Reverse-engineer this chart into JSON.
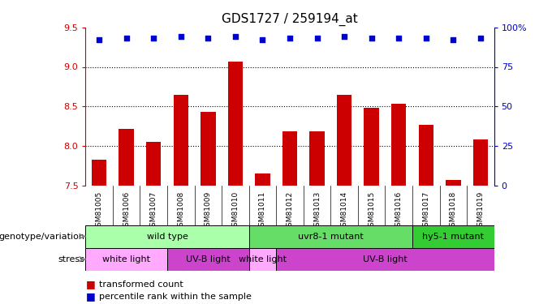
{
  "title": "GDS1727 / 259194_at",
  "samples": [
    "GSM81005",
    "GSM81006",
    "GSM81007",
    "GSM81008",
    "GSM81009",
    "GSM81010",
    "GSM81011",
    "GSM81012",
    "GSM81013",
    "GSM81014",
    "GSM81015",
    "GSM81016",
    "GSM81017",
    "GSM81018",
    "GSM81019"
  ],
  "bar_values": [
    7.83,
    8.22,
    8.05,
    8.65,
    8.43,
    9.07,
    7.65,
    8.18,
    8.18,
    8.65,
    8.48,
    8.53,
    8.27,
    7.57,
    8.08
  ],
  "percentile_values": [
    92,
    93,
    93,
    94,
    93,
    94,
    92,
    93,
    93,
    94,
    93,
    93,
    93,
    92,
    93
  ],
  "bar_color": "#cc0000",
  "percentile_color": "#0000cc",
  "ylim_left": [
    7.5,
    9.5
  ],
  "ylim_right": [
    0,
    100
  ],
  "yticks_left": [
    7.5,
    8.0,
    8.5,
    9.0,
    9.5
  ],
  "yticks_right": [
    0,
    25,
    50,
    75,
    100
  ],
  "grid_values": [
    8.0,
    8.5,
    9.0
  ],
  "background_color": "#ffffff",
  "sample_label_bg": "#cccccc",
  "genotype_groups": [
    {
      "label": "wild type",
      "start": 0,
      "end": 6,
      "color": "#aaffaa"
    },
    {
      "label": "uvr8-1 mutant",
      "start": 6,
      "end": 12,
      "color": "#66dd66"
    },
    {
      "label": "hy5-1 mutant",
      "start": 12,
      "end": 15,
      "color": "#33cc33"
    }
  ],
  "stress_groups": [
    {
      "label": "white light",
      "start": 0,
      "end": 3,
      "color": "#ffaaff"
    },
    {
      "label": "UV-B light",
      "start": 3,
      "end": 6,
      "color": "#cc44cc"
    },
    {
      "label": "white light",
      "start": 6,
      "end": 7,
      "color": "#ffaaff"
    },
    {
      "label": "UV-B light",
      "start": 7,
      "end": 15,
      "color": "#cc44cc"
    }
  ],
  "legend_bar_label": "transformed count",
  "legend_pct_label": "percentile rank within the sample",
  "genotype_label": "genotype/variation",
  "stress_label": "stress",
  "group_separators": [
    5.5,
    11.5
  ]
}
